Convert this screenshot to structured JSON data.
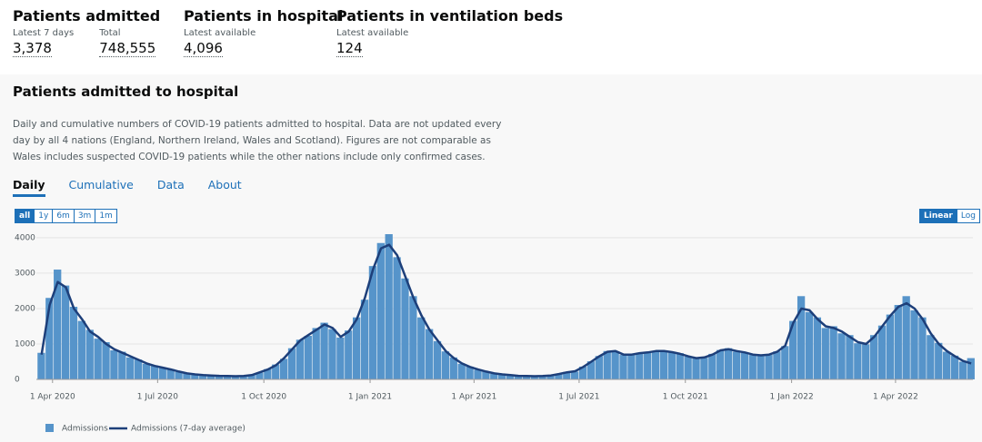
{
  "headlines": [
    {
      "title": "Patients admitted",
      "items": [
        {
          "label": "Latest 7 days",
          "value": "3,378"
        },
        {
          "label": "Total",
          "value": "748,555"
        }
      ]
    },
    {
      "title": "Patients in hospital",
      "items": [
        {
          "label": "Latest available",
          "value": "4,096"
        }
      ]
    },
    {
      "title": "Patients in ventilation beds",
      "items": [
        {
          "label": "Latest available",
          "value": "124"
        }
      ]
    }
  ],
  "card": {
    "title": "Patients admitted to hospital",
    "description": "Daily and cumulative numbers of COVID-19 patients admitted to hospital. Data are not updated every day by all 4 nations (England, Northern Ireland, Wales and Scotland). Figures are not comparable as Wales includes suspected COVID-19 patients while the other nations include only confirmed cases.",
    "tabs": [
      "Daily",
      "Cumulative",
      "Data",
      "About"
    ],
    "ranges": [
      "all",
      "1y",
      "6m",
      "3m",
      "1m"
    ],
    "scales": [
      "Linear",
      "Log"
    ]
  },
  "chart_data": {
    "type": "bar-line",
    "x": [
      "2020-03-19",
      "2020-03-26",
      "2020-04-02",
      "2020-04-09",
      "2020-04-16",
      "2020-04-23",
      "2020-04-30",
      "2020-05-07",
      "2020-05-14",
      "2020-05-21",
      "2020-05-28",
      "2020-06-04",
      "2020-06-11",
      "2020-06-18",
      "2020-06-25",
      "2020-07-02",
      "2020-07-09",
      "2020-07-16",
      "2020-07-23",
      "2020-07-30",
      "2020-08-06",
      "2020-08-13",
      "2020-08-20",
      "2020-08-27",
      "2020-09-03",
      "2020-09-10",
      "2020-09-17",
      "2020-09-24",
      "2020-10-01",
      "2020-10-08",
      "2020-10-15",
      "2020-10-22",
      "2020-10-29",
      "2020-11-05",
      "2020-11-12",
      "2020-11-19",
      "2020-11-26",
      "2020-12-03",
      "2020-12-10",
      "2020-12-17",
      "2020-12-24",
      "2020-12-31",
      "2021-01-07",
      "2021-01-14",
      "2021-01-21",
      "2021-01-28",
      "2021-02-04",
      "2021-02-11",
      "2021-02-18",
      "2021-02-25",
      "2021-03-04",
      "2021-03-11",
      "2021-03-18",
      "2021-03-25",
      "2021-04-01",
      "2021-04-08",
      "2021-04-15",
      "2021-04-22",
      "2021-04-29",
      "2021-05-06",
      "2021-05-13",
      "2021-05-20",
      "2021-05-27",
      "2021-06-03",
      "2021-06-10",
      "2021-06-17",
      "2021-06-24",
      "2021-07-01",
      "2021-07-08",
      "2021-07-15",
      "2021-07-22",
      "2021-07-29",
      "2021-08-05",
      "2021-08-12",
      "2021-08-19",
      "2021-08-26",
      "2021-09-02",
      "2021-09-09",
      "2021-09-16",
      "2021-09-23",
      "2021-09-30",
      "2021-10-07",
      "2021-10-14",
      "2021-10-21",
      "2021-10-28",
      "2021-11-04",
      "2021-11-11",
      "2021-11-18",
      "2021-11-25",
      "2021-12-02",
      "2021-12-09",
      "2021-12-16",
      "2021-12-23",
      "2021-12-30",
      "2022-01-06",
      "2022-01-13",
      "2022-01-20",
      "2022-01-27",
      "2022-02-03",
      "2022-02-10",
      "2022-02-17",
      "2022-02-24",
      "2022-03-03",
      "2022-03-10",
      "2022-03-17",
      "2022-03-24",
      "2022-03-31",
      "2022-04-07",
      "2022-04-14",
      "2022-04-21",
      "2022-04-28",
      "2022-05-05",
      "2022-05-12",
      "2022-05-19",
      "2022-05-26",
      "2022-06-02"
    ],
    "series": [
      {
        "name": "Admissions",
        "color": "#5694ca",
        "values": [
          750,
          2300,
          3100,
          2650,
          2050,
          1650,
          1400,
          1150,
          1050,
          820,
          780,
          620,
          560,
          440,
          390,
          320,
          290,
          210,
          180,
          130,
          125,
          105,
          100,
          90,
          95,
          90,
          130,
          190,
          290,
          420,
          580,
          880,
          1120,
          1230,
          1450,
          1600,
          1420,
          1180,
          1380,
          1750,
          2250,
          3200,
          3850,
          4100,
          3450,
          2850,
          2350,
          1750,
          1420,
          1080,
          790,
          620,
          440,
          360,
          270,
          230,
          160,
          150,
          110,
          105,
          90,
          95,
          90,
          110,
          150,
          210,
          220,
          360,
          510,
          660,
          800,
          790,
          690,
          720,
          730,
          780,
          790,
          820,
          760,
          740,
          640,
          590,
          610,
          720,
          830,
          880,
          780,
          750,
          690,
          690,
          690,
          790,
          940,
          1650,
          2350,
          1900,
          1750,
          1450,
          1500,
          1300,
          1250,
          1020,
          990,
          1250,
          1520,
          1830,
          2100,
          2350,
          1950,
          1750,
          1250,
          1030,
          780,
          670,
          500,
          600
        ]
      },
      {
        "name": "Admissions (7-day average)",
        "color": "#1d3f7a",
        "values": [
          700,
          2100,
          2750,
          2600,
          2000,
          1700,
          1350,
          1200,
          1000,
          850,
          750,
          650,
          550,
          450,
          380,
          330,
          280,
          220,
          170,
          140,
          120,
          110,
          100,
          95,
          90,
          95,
          120,
          200,
          280,
          400,
          600,
          850,
          1100,
          1250,
          1400,
          1550,
          1450,
          1200,
          1350,
          1700,
          2300,
          3100,
          3700,
          3800,
          3500,
          2900,
          2300,
          1800,
          1400,
          1100,
          800,
          600,
          450,
          350,
          280,
          220,
          170,
          140,
          120,
          100,
          95,
          90,
          95,
          110,
          150,
          200,
          230,
          350,
          500,
          650,
          780,
          800,
          700,
          700,
          740,
          760,
          800,
          800,
          770,
          720,
          650,
          600,
          620,
          700,
          820,
          850,
          800,
          760,
          700,
          680,
          700,
          780,
          950,
          1600,
          2000,
          1950,
          1700,
          1500,
          1450,
          1350,
          1200,
          1050,
          1000,
          1200,
          1500,
          1800,
          2050,
          2150,
          2000,
          1700,
          1300,
          1000,
          800,
          650,
          520,
          450
        ]
      }
    ],
    "xlim": [
      "2020-03-18",
      "2022-06-07"
    ],
    "xticks": [
      {
        "value": "2020-04-01",
        "label": "1 Apr 2020"
      },
      {
        "value": "2020-07-01",
        "label": "1 Jul 2020"
      },
      {
        "value": "2020-10-01",
        "label": "1 Oct 2020"
      },
      {
        "value": "2021-01-01",
        "label": "1 Jan 2021"
      },
      {
        "value": "2021-04-01",
        "label": "1 Apr 2021"
      },
      {
        "value": "2021-07-01",
        "label": "1 Jul 2021"
      },
      {
        "value": "2021-10-01",
        "label": "1 Oct 2021"
      },
      {
        "value": "2022-01-01",
        "label": "1 Jan 2022"
      },
      {
        "value": "2022-04-01",
        "label": "1 Apr 2022"
      }
    ],
    "ylim": [
      0,
      4100
    ],
    "yticks": [
      0,
      1000,
      2000,
      3000,
      4000
    ],
    "grid": true
  }
}
